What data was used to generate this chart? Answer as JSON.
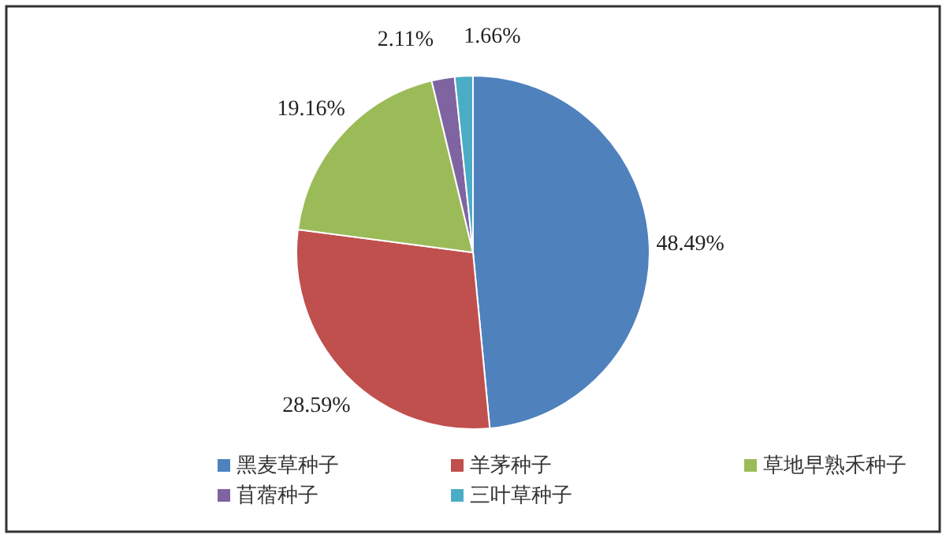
{
  "chart_data": {
    "type": "pie",
    "categories": [
      "黑麦草种子",
      "羊茅种子",
      "草地早熟禾种子",
      "苜蓿种子",
      "三叶草种子"
    ],
    "values": [
      48.49,
      28.59,
      19.16,
      2.11,
      1.66
    ],
    "value_labels": [
      "48.49%",
      "28.59%",
      "19.16%",
      "2.11%",
      "1.66%"
    ],
    "colors": [
      "#4f81bd",
      "#c0504d",
      "#9bbb59",
      "#8064a2",
      "#4bacc6"
    ],
    "legend": "bottom"
  }
}
